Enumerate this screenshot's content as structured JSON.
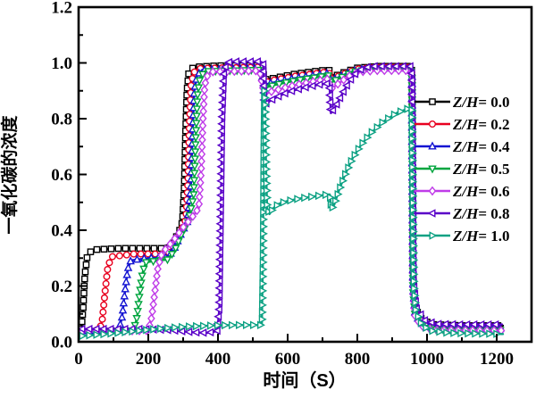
{
  "page": {
    "background": "#ffffff"
  },
  "chart_data": {
    "type": "line",
    "title": "",
    "xlabel": "时间（S）",
    "ylabel": "一氧化碳的浓度",
    "xlim": [
      0,
      1300
    ],
    "ylim": [
      0,
      1.2
    ],
    "grid": false,
    "legend_position": "right-middle",
    "xticks": {
      "values": [
        0,
        200,
        400,
        600,
        800,
        1000,
        1200
      ],
      "labels": [
        "0",
        "200",
        "400",
        "600",
        "800",
        "1000",
        "1200"
      ]
    },
    "yticks": {
      "values": [
        0,
        0.2,
        0.4,
        0.6,
        0.8,
        1.0,
        1.2
      ],
      "labels": [
        "0.0",
        "0.2",
        "0.4",
        "0.6",
        "0.8",
        "1.0",
        "1.2"
      ]
    },
    "x_minor_step": 100,
    "y_minor_step": 0.1,
    "series": [
      {
        "name": "Z/H= 0.0",
        "label_italic": "Z/H",
        "label_rest": "= 0.0",
        "color": "#000000",
        "marker": "square",
        "points": [
          [
            0,
            0.04
          ],
          [
            8,
            0.045
          ],
          [
            13,
            0.12
          ],
          [
            18,
            0.24
          ],
          [
            25,
            0.31
          ],
          [
            40,
            0.33
          ],
          [
            120,
            0.335
          ],
          [
            255,
            0.335
          ],
          [
            270,
            0.35
          ],
          [
            290,
            0.4
          ],
          [
            298,
            0.43
          ],
          [
            303,
            0.55
          ],
          [
            307,
            0.75
          ],
          [
            311,
            0.9
          ],
          [
            316,
            0.965
          ],
          [
            330,
            0.985
          ],
          [
            400,
            0.99
          ],
          [
            520,
            0.99
          ],
          [
            529,
            0.985
          ],
          [
            532,
            0.94
          ],
          [
            560,
            0.945
          ],
          [
            620,
            0.96
          ],
          [
            680,
            0.97
          ],
          [
            714,
            0.975
          ],
          [
            719,
            0.975
          ],
          [
            723,
            0.948
          ],
          [
            740,
            0.955
          ],
          [
            770,
            0.97
          ],
          [
            800,
            0.982
          ],
          [
            860,
            0.988
          ],
          [
            952,
            0.988
          ],
          [
            957,
            0.97
          ],
          [
            960,
            0.25
          ],
          [
            966,
            0.12
          ],
          [
            985,
            0.08
          ],
          [
            1015,
            0.062
          ],
          [
            1100,
            0.058
          ],
          [
            1218,
            0.058
          ]
        ]
      },
      {
        "name": "Z/H= 0.2",
        "label_italic": "Z/H",
        "label_rest": "= 0.2",
        "color": "#e8001f",
        "marker": "circle",
        "points": [
          [
            0,
            0.04
          ],
          [
            60,
            0.042
          ],
          [
            68,
            0.08
          ],
          [
            76,
            0.18
          ],
          [
            84,
            0.27
          ],
          [
            95,
            0.305
          ],
          [
            160,
            0.315
          ],
          [
            255,
            0.315
          ],
          [
            272,
            0.34
          ],
          [
            295,
            0.4
          ],
          [
            308,
            0.44
          ],
          [
            314,
            0.58
          ],
          [
            318,
            0.78
          ],
          [
            323,
            0.92
          ],
          [
            330,
            0.965
          ],
          [
            345,
            0.98
          ],
          [
            520,
            0.985
          ],
          [
            532,
            0.93
          ],
          [
            560,
            0.938
          ],
          [
            620,
            0.952
          ],
          [
            680,
            0.962
          ],
          [
            714,
            0.968
          ],
          [
            719,
            0.968
          ],
          [
            723,
            0.942
          ],
          [
            740,
            0.95
          ],
          [
            770,
            0.965
          ],
          [
            800,
            0.978
          ],
          [
            860,
            0.984
          ],
          [
            952,
            0.984
          ],
          [
            957,
            0.96
          ],
          [
            960,
            0.22
          ],
          [
            966,
            0.1
          ],
          [
            990,
            0.065
          ],
          [
            1020,
            0.052
          ],
          [
            1218,
            0.05
          ]
        ]
      },
      {
        "name": "Z/H= 0.4",
        "label_italic": "Z/H",
        "label_rest": "= 0.4",
        "color": "#1414d2",
        "marker": "triangle-up",
        "points": [
          [
            0,
            0.038
          ],
          [
            115,
            0.04
          ],
          [
            125,
            0.09
          ],
          [
            133,
            0.18
          ],
          [
            141,
            0.26
          ],
          [
            150,
            0.292
          ],
          [
            200,
            0.3
          ],
          [
            255,
            0.302
          ],
          [
            273,
            0.33
          ],
          [
            295,
            0.39
          ],
          [
            312,
            0.43
          ],
          [
            322,
            0.55
          ],
          [
            327,
            0.75
          ],
          [
            332,
            0.9
          ],
          [
            340,
            0.955
          ],
          [
            355,
            0.975
          ],
          [
            520,
            0.98
          ],
          [
            532,
            0.922
          ],
          [
            560,
            0.93
          ],
          [
            620,
            0.945
          ],
          [
            680,
            0.956
          ],
          [
            714,
            0.962
          ],
          [
            719,
            0.962
          ],
          [
            723,
            0.936
          ],
          [
            740,
            0.945
          ],
          [
            770,
            0.962
          ],
          [
            800,
            0.975
          ],
          [
            860,
            0.98
          ],
          [
            952,
            0.98
          ],
          [
            957,
            0.95
          ],
          [
            960,
            0.2
          ],
          [
            966,
            0.095
          ],
          [
            990,
            0.06
          ],
          [
            1020,
            0.048
          ],
          [
            1218,
            0.046
          ]
        ]
      },
      {
        "name": "Z/H= 0.5",
        "label_italic": "Z/H",
        "label_rest": "= 0.5",
        "color": "#00a53f",
        "marker": "triangle-down",
        "points": [
          [
            0,
            0.038
          ],
          [
            158,
            0.04
          ],
          [
            168,
            0.09
          ],
          [
            176,
            0.18
          ],
          [
            184,
            0.25
          ],
          [
            193,
            0.285
          ],
          [
            230,
            0.292
          ],
          [
            255,
            0.295
          ],
          [
            275,
            0.325
          ],
          [
            295,
            0.385
          ],
          [
            315,
            0.43
          ],
          [
            330,
            0.52
          ],
          [
            336,
            0.72
          ],
          [
            341,
            0.88
          ],
          [
            348,
            0.945
          ],
          [
            362,
            0.97
          ],
          [
            520,
            0.975
          ],
          [
            532,
            0.91
          ],
          [
            560,
            0.92
          ],
          [
            620,
            0.936
          ],
          [
            680,
            0.948
          ],
          [
            714,
            0.955
          ],
          [
            719,
            0.955
          ],
          [
            723,
            0.928
          ],
          [
            740,
            0.94
          ],
          [
            770,
            0.958
          ],
          [
            800,
            0.972
          ],
          [
            860,
            0.977
          ],
          [
            952,
            0.977
          ],
          [
            957,
            0.94
          ],
          [
            960,
            0.18
          ],
          [
            966,
            0.09
          ],
          [
            990,
            0.055
          ],
          [
            1020,
            0.044
          ],
          [
            1218,
            0.042
          ]
        ]
      },
      {
        "name": "Z/H= 0.6",
        "label_italic": "Z/H",
        "label_rest": "= 0.6",
        "color": "#bf3be8",
        "marker": "diamond",
        "points": [
          [
            0,
            0.038
          ],
          [
            200,
            0.04
          ],
          [
            210,
            0.09
          ],
          [
            219,
            0.18
          ],
          [
            227,
            0.26
          ],
          [
            237,
            0.31
          ],
          [
            248,
            0.33
          ],
          [
            270,
            0.36
          ],
          [
            300,
            0.41
          ],
          [
            325,
            0.445
          ],
          [
            345,
            0.48
          ],
          [
            352,
            0.62
          ],
          [
            357,
            0.8
          ],
          [
            362,
            0.92
          ],
          [
            370,
            0.955
          ],
          [
            385,
            0.968
          ],
          [
            520,
            0.972
          ],
          [
            532,
            0.888
          ],
          [
            560,
            0.9
          ],
          [
            620,
            0.92
          ],
          [
            680,
            0.935
          ],
          [
            714,
            0.942
          ],
          [
            719,
            0.942
          ],
          [
            723,
            0.905
          ],
          [
            745,
            0.925
          ],
          [
            775,
            0.952
          ],
          [
            805,
            0.968
          ],
          [
            860,
            0.973
          ],
          [
            952,
            0.973
          ],
          [
            957,
            0.93
          ],
          [
            960,
            0.17
          ],
          [
            966,
            0.085
          ],
          [
            990,
            0.052
          ],
          [
            1020,
            0.042
          ],
          [
            1218,
            0.04
          ]
        ]
      },
      {
        "name": "Z/H= 0.8",
        "label_italic": "Z/H",
        "label_rest": "= 0.8",
        "color": "#5a00c8",
        "marker": "triangle-left",
        "points": [
          [
            0,
            0.046
          ],
          [
            180,
            0.046
          ],
          [
            260,
            0.042
          ],
          [
            330,
            0.034
          ],
          [
            370,
            0.032
          ],
          [
            398,
            0.038
          ],
          [
            404,
            0.12
          ],
          [
            408,
            0.45
          ],
          [
            412,
            0.8
          ],
          [
            417,
            0.96
          ],
          [
            424,
            1.0
          ],
          [
            440,
            1.005
          ],
          [
            520,
            1.005
          ],
          [
            530,
            1.0
          ],
          [
            533,
            0.85
          ],
          [
            560,
            0.872
          ],
          [
            600,
            0.895
          ],
          [
            650,
            0.912
          ],
          [
            690,
            0.922
          ],
          [
            715,
            0.926
          ],
          [
            720,
            0.926
          ],
          [
            724,
            0.82
          ],
          [
            736,
            0.84
          ],
          [
            755,
            0.885
          ],
          [
            775,
            0.93
          ],
          [
            795,
            0.962
          ],
          [
            815,
            0.98
          ],
          [
            840,
            0.988
          ],
          [
            952,
            0.988
          ],
          [
            957,
            0.96
          ],
          [
            961,
            0.22
          ],
          [
            970,
            0.12
          ],
          [
            995,
            0.075
          ],
          [
            1030,
            0.064
          ],
          [
            1100,
            0.062
          ],
          [
            1215,
            0.062
          ]
        ]
      },
      {
        "name": "Z/H= 1.0",
        "label_italic": "Z/H",
        "label_rest": "= 1.0",
        "color": "#0ca183",
        "marker": "triangle-right",
        "points": [
          [
            0,
            0.02
          ],
          [
            80,
            0.028
          ],
          [
            160,
            0.038
          ],
          [
            240,
            0.048
          ],
          [
            320,
            0.055
          ],
          [
            400,
            0.059
          ],
          [
            460,
            0.06
          ],
          [
            526,
            0.06
          ],
          [
            529,
            0.3
          ],
          [
            531,
            0.68
          ],
          [
            533,
            0.9
          ],
          [
            535,
            0.87
          ],
          [
            538,
            0.62
          ],
          [
            541,
            0.48
          ],
          [
            548,
            0.458
          ],
          [
            558,
            0.478
          ],
          [
            575,
            0.495
          ],
          [
            600,
            0.505
          ],
          [
            640,
            0.515
          ],
          [
            690,
            0.524
          ],
          [
            716,
            0.528
          ],
          [
            721,
            0.528
          ],
          [
            725,
            0.475
          ],
          [
            733,
            0.49
          ],
          [
            748,
            0.545
          ],
          [
            765,
            0.6
          ],
          [
            785,
            0.655
          ],
          [
            810,
            0.705
          ],
          [
            840,
            0.75
          ],
          [
            875,
            0.79
          ],
          [
            915,
            0.822
          ],
          [
            950,
            0.838
          ],
          [
            956,
            0.84
          ],
          [
            959,
            0.5
          ],
          [
            962,
            0.2
          ],
          [
            968,
            0.11
          ],
          [
            985,
            0.06
          ],
          [
            1010,
            0.04
          ],
          [
            1060,
            0.032
          ],
          [
            1120,
            0.03
          ],
          [
            1218,
            0.028
          ]
        ]
      }
    ]
  }
}
